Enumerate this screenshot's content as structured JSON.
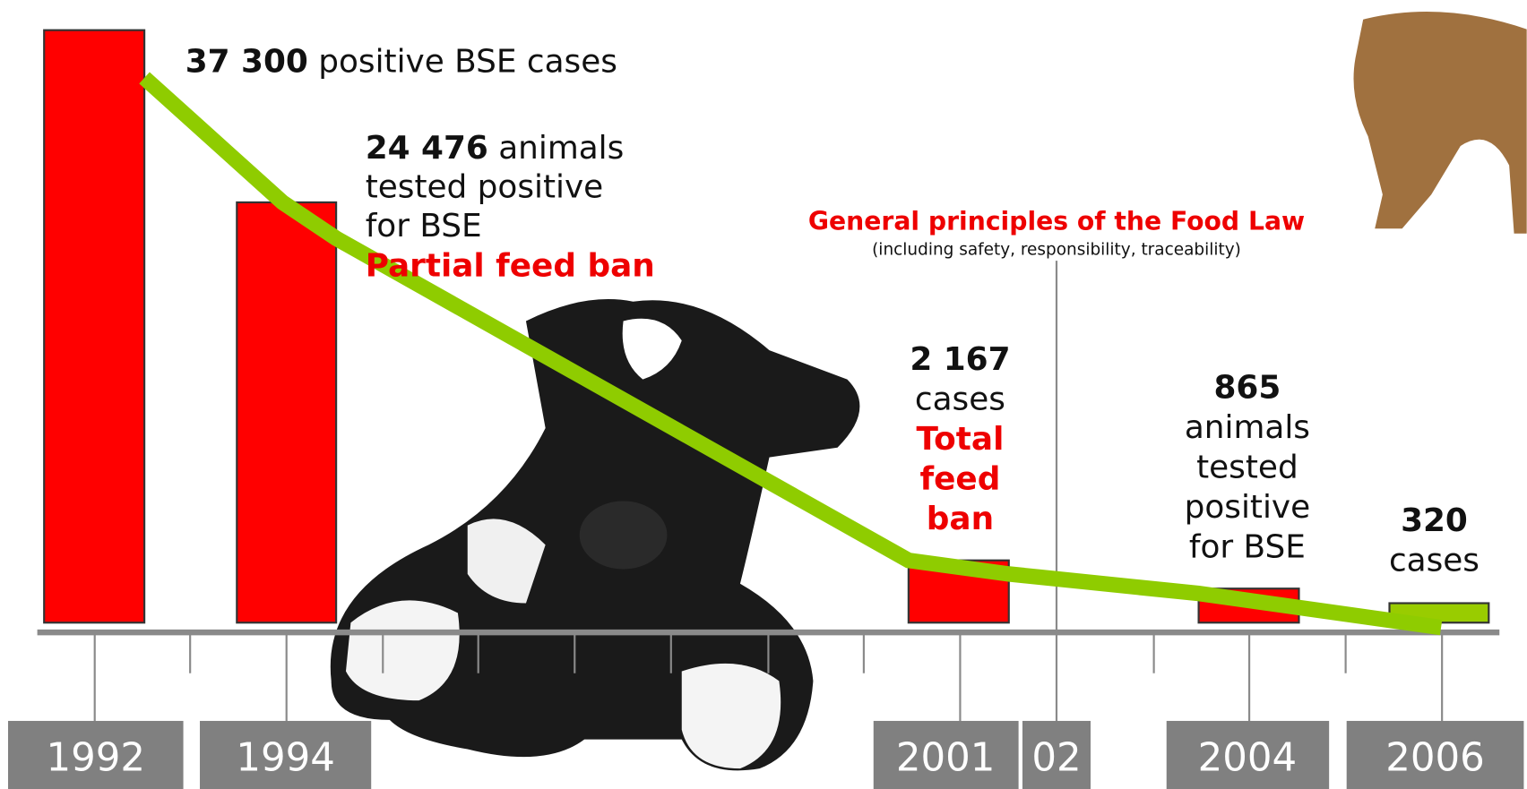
{
  "events": [
    {
      "year": "1992",
      "figure": "37 300",
      "caption": [
        "positive BSE cases"
      ]
    },
    {
      "year": "1994",
      "figure": "24 476",
      "caption": [
        "animals",
        "tested positive",
        "for BSE"
      ],
      "measure": [
        "Partial feed ban"
      ]
    },
    {
      "year": "2001",
      "figure": "2 167",
      "caption": [
        "cases"
      ],
      "measure": [
        "Total",
        "feed",
        "ban"
      ]
    },
    {
      "year": "2004",
      "figure": "865",
      "caption": [
        "animals",
        "tested",
        "positive",
        "for BSE"
      ]
    },
    {
      "year": "2006",
      "figure": "320",
      "caption": [
        "cases"
      ]
    }
  ],
  "milestone": {
    "year": "02",
    "title": "General principles of the Food Law",
    "subtitle": "(including safety, responsibility, traceability)"
  }
}
